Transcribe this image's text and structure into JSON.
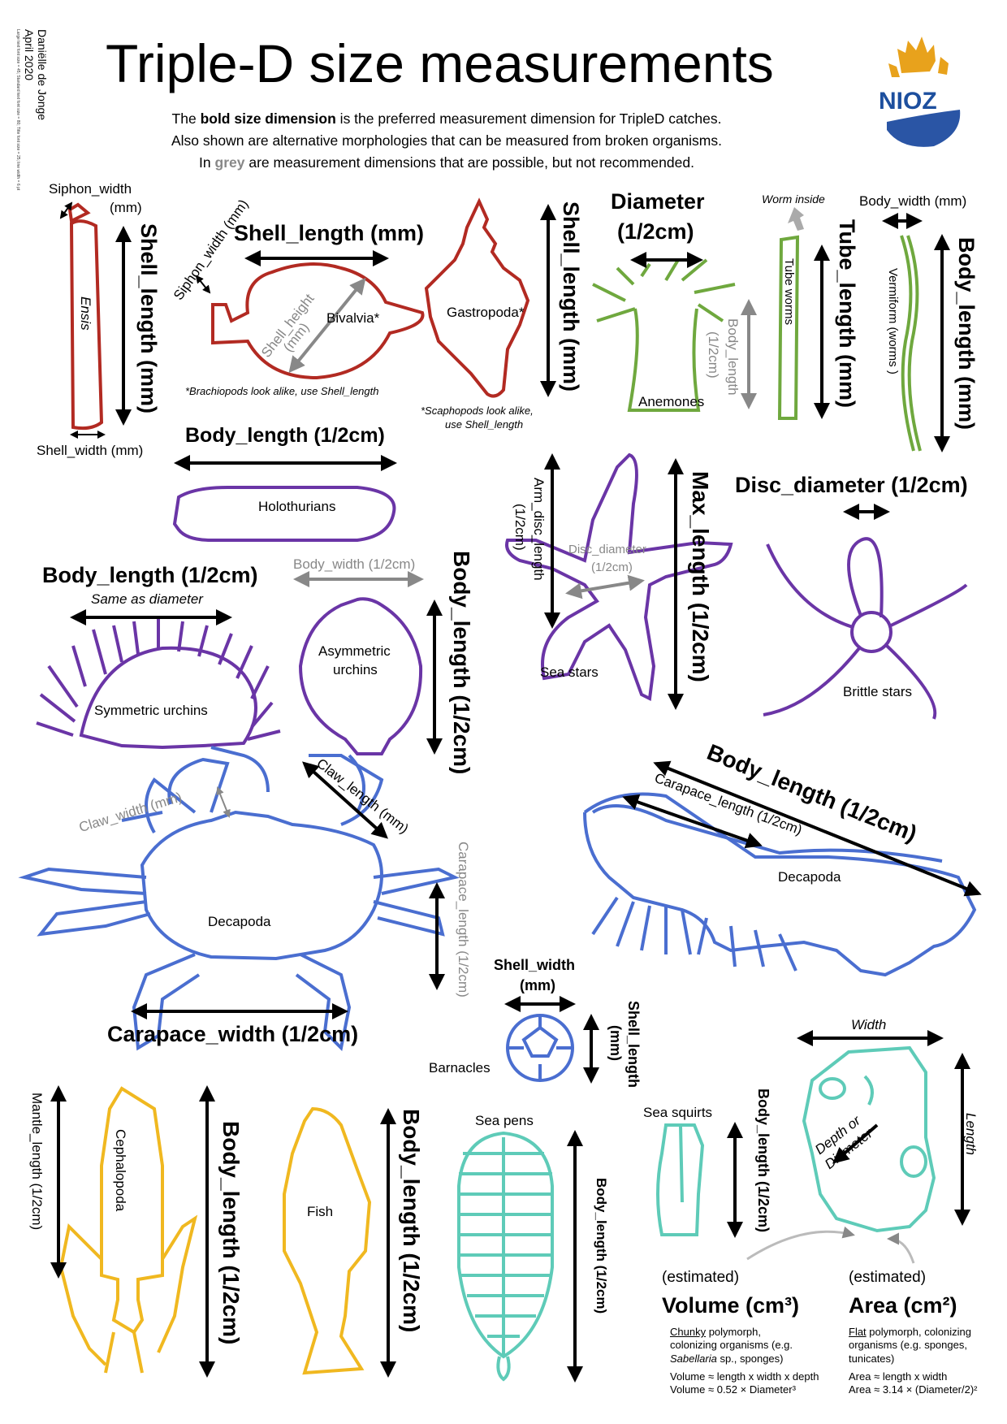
{
  "header": {
    "author": "Daniëlle de Jonge",
    "date": "April 2020",
    "tiny_note": "Large text font size = 45; Standard text font size = 80; Title font size = 25; line width = 6 pt",
    "title": "Triple-D size measurements",
    "intro_pre": "The ",
    "intro_bold": "bold size dimension",
    "intro_post": " is the preferred measurement dimension for TripleD catches.",
    "intro_line2": "Also shown are alternative morphologies that can be measured from broken organisms.",
    "intro_line3_pre": "In ",
    "intro_grey": "grey",
    "intro_line3_post": " are measurement dimensions that are possible, but not recommended.",
    "logo": "NIOZ"
  },
  "colors": {
    "bivalve": "#b22a22",
    "worm": "#6fa83e",
    "echinoderm": "#6a35a6",
    "decapod": "#4a6ed0",
    "chordata": "#f0b820",
    "tunicate": "#5ecbb8",
    "grey": "#888888"
  },
  "labels": {
    "siphon_width": "Siphon_width",
    "siphon_width_unit": "(mm)",
    "ensis": "Ensis",
    "ensis_shell_length": "Shell_length (mm)",
    "shell_width": "Shell_width (mm)",
    "siphon_width_rot": "Siphon_width (mm)",
    "bivalvia_shell_length": "Shell_length (mm)",
    "bivalvia": "Bivalvia*",
    "shell_height": "Shell_height",
    "shell_height_unit": "(mm)",
    "brachiopods_note": "*Brachiopods look alike, use Shell_length",
    "gastropoda": "Gastropoda*",
    "gastropoda_shell_length": "Shell_length (mm)",
    "scaphopods_note_1": "*Scaphopods look alike,",
    "scaphopods_note_2": "use Shell_length",
    "diameter": "Diameter",
    "diameter_unit": "(1/2cm)",
    "anemone_body_length": "Body_length",
    "anemone_body_length_unit": "(1/2cm)",
    "anemones": "Anemones",
    "worm_inside": "Worm inside",
    "tube_worms": "Tube worms",
    "tube_length": "Tube_length (mm)",
    "body_width_mm": "Body_width (mm)",
    "vermiform": "Vermiform (worms )",
    "worm_body_length": "Body_length (mm)",
    "holothurian_body_length": "Body_length (1/2cm)",
    "holothurians": "Holothurians",
    "arm_disc_length": "Arm_disc_length",
    "arm_disc_length_unit": "(1/2cm)",
    "disc_diameter_grey": "Disc_diameter",
    "disc_diameter_grey_unit": "(1/2cm)",
    "max_length": "Max_length (1/2cm)",
    "sea_stars": "Sea stars",
    "disc_diameter": "Disc_diameter (1/2cm)",
    "brittle_stars": "Brittle stars",
    "urchin_body_length": "Body_length (1/2cm)",
    "same_as_diameter": "Same as diameter",
    "symmetric_urchins": "Symmetric urchins",
    "urchin_body_width": "Body_width (1/2cm)",
    "asymmetric_urchins_1": "Asymmetric",
    "asymmetric_urchins_2": "urchins",
    "asym_body_length": "Body_length (1/2cm)",
    "claw_width": "Claw_width (mm)",
    "claw_length": "Claw_length (mm)",
    "crab_decapoda": "Decapoda",
    "carapace_length_grey": "Carapace_length (1/2cm)",
    "carapace_width": "Carapace_width (1/2cm)",
    "shrimp_body_length": "Body_length (1/2cm)",
    "shrimp_carapace_length": "Carapace_length (1/2cm)",
    "shrimp_decapoda": "Decapoda",
    "barnacle_shell_width": "Shell_width",
    "barnacle_shell_width_unit": "(mm)",
    "barnacle_shell_length": "Shell_length",
    "barnacle_shell_length_unit": "(mm)",
    "barnacles": "Barnacles",
    "mantle_length": "Mantle_length (1/2cm)",
    "cephalopoda": "Cephalopoda",
    "cephalopod_body_length": "Body_length (1/2cm)",
    "fish": "Fish",
    "fish_body_length": "Body_length (1/2cm)",
    "sea_pens": "Sea pens",
    "seapen_body_length": "Body_length (1/2cm)",
    "sea_squirts": "Sea squirts",
    "squirt_body_length": "Body_length (1/2cm)",
    "width": "Width",
    "length": "Length",
    "depth_1": "Depth or",
    "depth_2": "Diameter",
    "estimated_1": "(estimated)",
    "volume": "Volume (cm³)",
    "estimated_2": "(estimated)",
    "area": "Area (cm²)"
  },
  "notes": {
    "chunky_u": "Chunky",
    "chunky_1": " polymorph,",
    "chunky_2": "colonizing organisms (e.g.",
    "chunky_3_it": "Sabellaria",
    "chunky_3": " sp., sponges)",
    "vol_f1": "Volume ≈ length x width x depth",
    "vol_f2": "Volume ≈ 0.52 × Diameter³",
    "flat_u": "Flat",
    "flat_1": " polymorph, colonizing",
    "flat_2": "organisms (e.g. sponges,",
    "flat_3": "tunicates)",
    "area_f1": "Area ≈ length x width",
    "area_f2": "Area ≈ 3.14 × (Diameter/2)²"
  }
}
